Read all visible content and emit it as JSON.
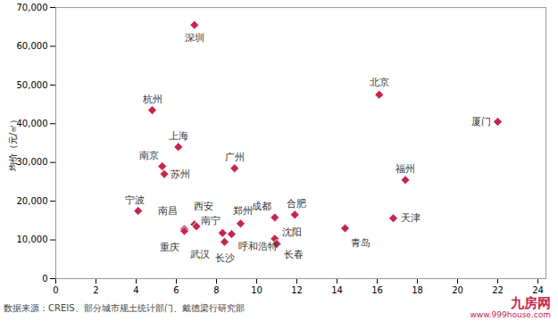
{
  "chart_data": {
    "type": "scatter",
    "y_label": "均价（元/㎡）",
    "caption": "数据来源：CREIS、部分城市规土统计部门、戴德梁行研究部",
    "watermark": [
      "九房网",
      "www.999house.com"
    ],
    "color": "#c8254a",
    "marker": "diamond",
    "grid": false,
    "categories": [
      "深圳",
      "杭州",
      "南京",
      "苏州",
      "上海",
      "宁波",
      "广州",
      "南昌",
      "重庆",
      "西安",
      "武汉",
      "南宁",
      "长沙",
      "呼和浩特",
      "郑州",
      "成都",
      "沈阳",
      "长春",
      "合肥",
      "青岛",
      "北京",
      "天津",
      "福州",
      "厦门"
    ],
    "x": [
      6.9,
      4.8,
      5.3,
      5.4,
      6.1,
      4.1,
      8.9,
      6.4,
      6.4,
      6.9,
      7.0,
      8.3,
      8.4,
      8.75,
      9.2,
      10.9,
      10.9,
      11.0,
      11.9,
      14.4,
      16.1,
      16.8,
      17.4,
      22.0
    ],
    "values": [
      65500,
      43500,
      29000,
      27000,
      34000,
      17500,
      28500,
      12800,
      12300,
      14000,
      13500,
      11800,
      9500,
      11500,
      14200,
      15800,
      10300,
      9000,
      16500,
      13000,
      47500,
      15600,
      25500,
      40500
    ],
    "xlim": [
      0,
      24.4
    ],
    "xticks": [
      0,
      2,
      4,
      6,
      8,
      10,
      12,
      14,
      16,
      18,
      20,
      22,
      24
    ],
    "ylim": [
      0,
      70000
    ],
    "yticks": [
      0,
      {
        "value": 10000,
        "label": "10,000"
      },
      {
        "value": 20000,
        "label": "20,000"
      },
      {
        "value": 30000,
        "label": "30,000"
      },
      {
        "value": 40000,
        "label": "40,000"
      },
      {
        "value": 50000,
        "label": "50,000"
      },
      {
        "value": 60000,
        "label": "60,000"
      },
      {
        "value": 70000,
        "label": "70,000"
      }
    ]
  }
}
